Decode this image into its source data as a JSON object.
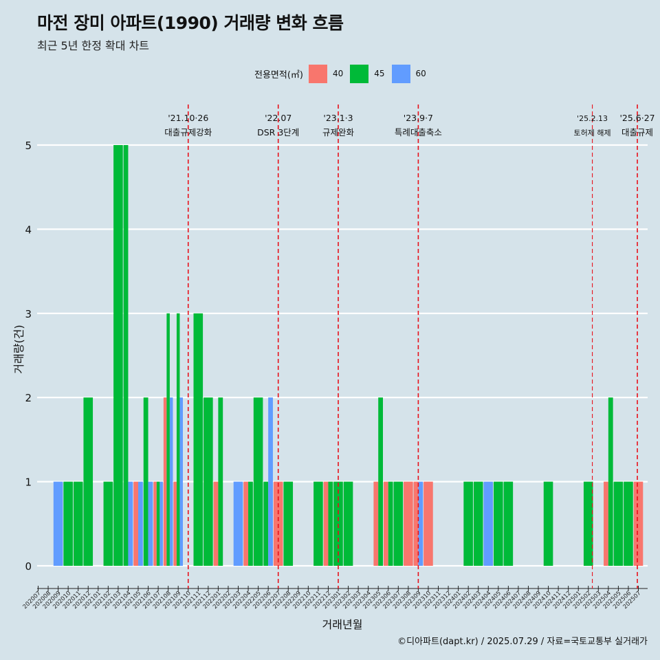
{
  "title": "마전 장미 아파트(1990) 거래량 변화 흐름",
  "subtitle": "최근 5년 한정 확대 차트",
  "caption": "©디아파트(dapt.kr) / 2025.07.29 / 자료=국토교통부 실거래가",
  "legend": {
    "title": "전용면적(㎡)",
    "items": [
      {
        "label": "40",
        "color": "#F8766D"
      },
      {
        "label": "45",
        "color": "#00BA38"
      },
      {
        "label": "60",
        "color": "#619CFF"
      }
    ]
  },
  "chart_data": {
    "type": "bar",
    "stacked": false,
    "xlabel": "거래년월",
    "ylabel": "거래량(건)",
    "ylim": [
      0,
      5
    ],
    "yticks": [
      0,
      1,
      2,
      3,
      4,
      5
    ],
    "categories": [
      "202007",
      "202008",
      "202009",
      "202010",
      "202011",
      "202012",
      "202101",
      "202102",
      "202103",
      "202104",
      "202105",
      "202106",
      "202107",
      "202108",
      "202109",
      "202110",
      "202111",
      "202112",
      "202201",
      "202202",
      "202203",
      "202204",
      "202205",
      "202206",
      "202207",
      "202208",
      "202209",
      "202210",
      "202211",
      "202212",
      "202301",
      "202302",
      "202303",
      "202304",
      "202305",
      "202306",
      "202307",
      "202308",
      "202309",
      "202310",
      "202311",
      "202312",
      "202401",
      "202402",
      "202403",
      "202404",
      "202405",
      "202406",
      "202407",
      "202408",
      "202409",
      "202410",
      "202411",
      "202412",
      "202501",
      "202502",
      "202503",
      "202504",
      "202505",
      "202506",
      "202507"
    ],
    "series": [
      {
        "name": "40",
        "color": "#F8766D",
        "values": [
          0,
          0,
          0,
          0,
          0,
          0,
          0,
          0,
          0,
          0,
          1,
          0,
          1,
          2,
          1,
          0,
          0,
          0,
          1,
          0,
          0,
          1,
          0,
          0,
          1,
          0,
          0,
          0,
          0,
          1,
          0,
          0,
          0,
          0,
          1,
          1,
          0,
          1,
          1,
          1,
          0,
          0,
          0,
          0,
          0,
          0,
          0,
          0,
          0,
          0,
          0,
          0,
          0,
          0,
          0,
          0,
          0,
          1,
          0,
          0,
          1
        ]
      },
      {
        "name": "45",
        "color": "#00BA38",
        "values": [
          0,
          0,
          0,
          1,
          1,
          2,
          0,
          1,
          5,
          5,
          0,
          2,
          1,
          3,
          3,
          0,
          3,
          2,
          2,
          0,
          0,
          1,
          2,
          1,
          0,
          1,
          0,
          0,
          1,
          1,
          1,
          1,
          0,
          0,
          2,
          1,
          1,
          0,
          0,
          0,
          0,
          0,
          0,
          1,
          1,
          0,
          1,
          1,
          0,
          0,
          0,
          1,
          0,
          0,
          0,
          1,
          0,
          2,
          1,
          1,
          0
        ]
      },
      {
        "name": "60",
        "color": "#619CFF",
        "values": [
          0,
          0,
          1,
          0,
          0,
          0,
          0,
          0,
          0,
          1,
          1,
          1,
          1,
          2,
          2,
          0,
          0,
          0,
          0,
          0,
          1,
          0,
          0,
          2,
          0,
          0,
          0,
          0,
          0,
          0,
          0,
          0,
          0,
          0,
          0,
          0,
          0,
          0,
          1,
          0,
          0,
          0,
          0,
          0,
          0,
          1,
          0,
          0,
          0,
          0,
          0,
          0,
          0,
          0,
          0,
          0,
          0,
          0,
          0,
          0,
          0
        ]
      }
    ],
    "events": [
      {
        "label": "'21.10·26",
        "label2": "대출규제강화",
        "at": "202110",
        "offset": 0
      },
      {
        "label": "'22.07",
        "label2": "DSR 3단계",
        "at": "202207",
        "offset": 0
      },
      {
        "label": "'23.1·3",
        "label2": "규제완화",
        "at": "202301",
        "offset": 0
      },
      {
        "label": "'23.9·7",
        "label2": "특례대출축소",
        "at": "202309",
        "offset": 0
      },
      {
        "label": "'25.2.13",
        "label2": "토허제 해제",
        "at": "202502",
        "offset": 0.4,
        "small": true
      },
      {
        "label": "'25.6·27",
        "label2": "대출규제",
        "at": "202506",
        "offset": 0.9
      }
    ]
  }
}
